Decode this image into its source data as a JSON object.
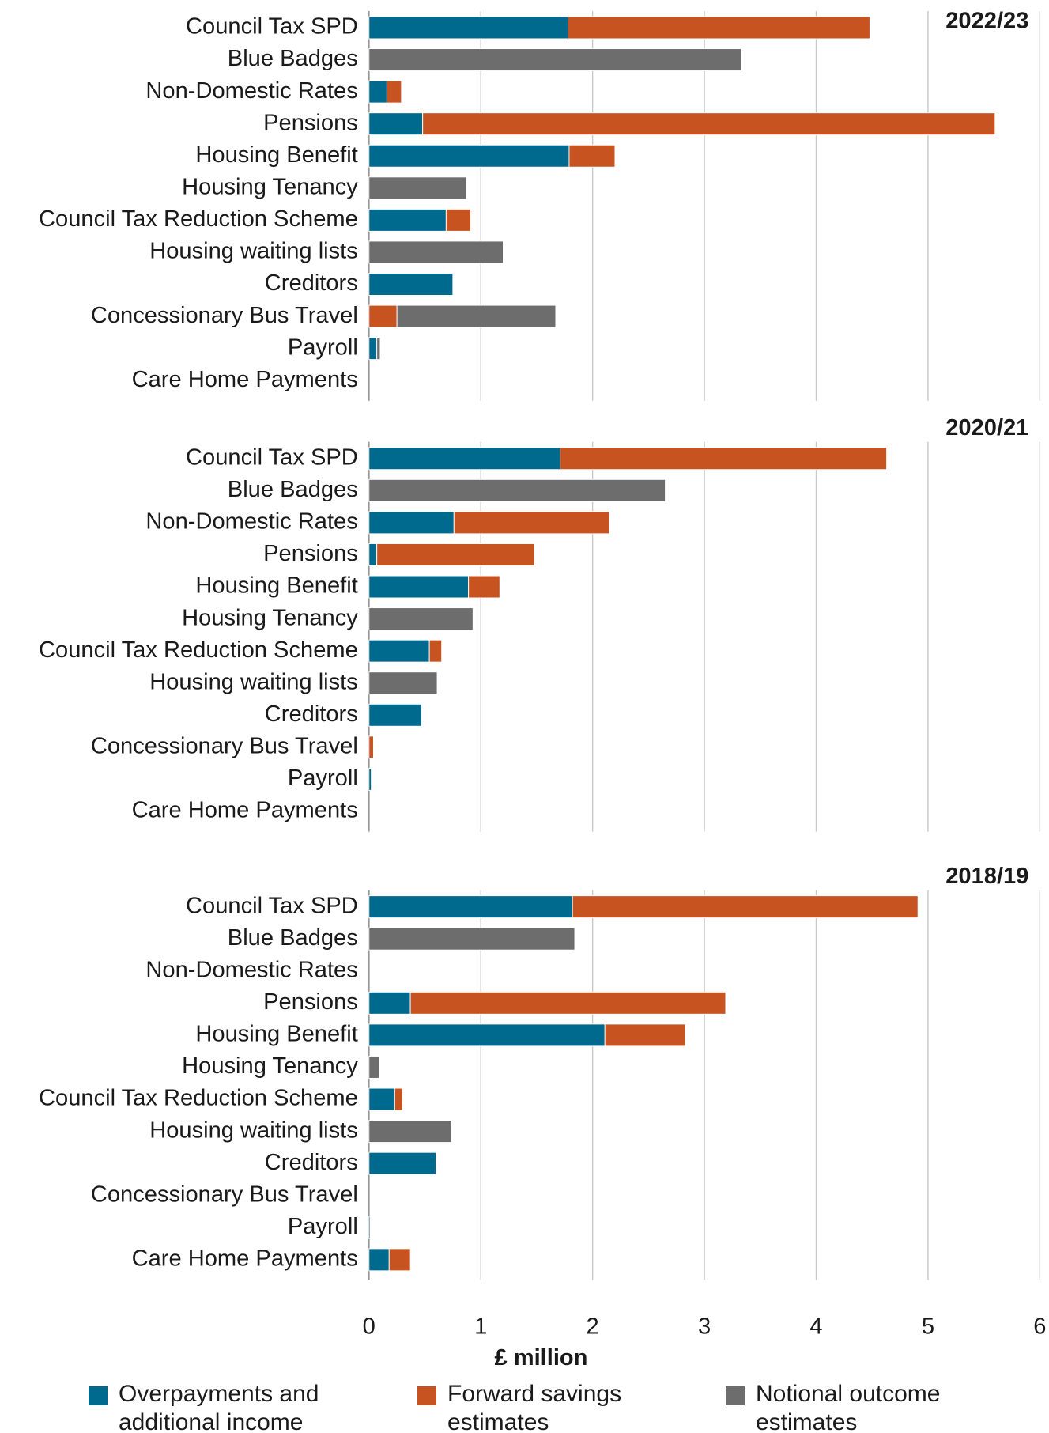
{
  "chart_data": {
    "type": "bar",
    "orientation": "horizontal",
    "stacked": true,
    "categories": [
      "Council Tax SPD",
      "Blue Badges",
      "Non-Domestic Rates",
      "Pensions",
      "Housing Benefit",
      "Housing Tenancy",
      "Council Tax Reduction Scheme",
      "Housing waiting lists",
      "Creditors",
      "Concessionary Bus Travel",
      "Payroll",
      "Care Home Payments"
    ],
    "legend": [
      {
        "name": "Overpayments and additional income",
        "color": "#006a8e"
      },
      {
        "name": "Forward savings estimates",
        "color": "#c65320"
      },
      {
        "name": "Notional outcome estimates",
        "color": "#6d6d6d"
      }
    ],
    "panels": [
      {
        "title": "2022/23",
        "series": [
          {
            "values": [
              1.78,
              0,
              0.16,
              0.48,
              1.79,
              0,
              0.69,
              0,
              0.75,
              0,
              0.07,
              0
            ]
          },
          {
            "values": [
              2.7,
              0,
              0.13,
              5.12,
              0.41,
              0,
              0.22,
              0,
              0,
              0.25,
              0,
              0
            ]
          },
          {
            "values": [
              0,
              3.33,
              0,
              0,
              0,
              0.87,
              0,
              1.2,
              0,
              1.42,
              0.03,
              0
            ]
          }
        ]
      },
      {
        "title": "2020/21",
        "series": [
          {
            "values": [
              1.71,
              0,
              0.76,
              0.07,
              0.89,
              0,
              0.54,
              0,
              0.47,
              0,
              0.02,
              0
            ]
          },
          {
            "values": [
              2.92,
              0,
              1.39,
              1.41,
              0.28,
              0,
              0.11,
              0,
              0,
              0.04,
              0,
              0
            ]
          },
          {
            "values": [
              0,
              2.65,
              0,
              0,
              0,
              0.93,
              0,
              0.61,
              0,
              0,
              0,
              0
            ]
          }
        ]
      },
      {
        "title": "2018/19",
        "series": [
          {
            "values": [
              1.82,
              0,
              0,
              0.37,
              2.11,
              0,
              0.23,
              0,
              0.6,
              0,
              0.01,
              0.18
            ]
          },
          {
            "values": [
              3.09,
              0,
              0,
              2.82,
              0.72,
              0,
              0.07,
              0,
              0,
              0,
              0,
              0.19
            ]
          },
          {
            "values": [
              0,
              1.84,
              0,
              0,
              0,
              0.09,
              0,
              0.74,
              0,
              0,
              0,
              0
            ]
          }
        ]
      }
    ],
    "xlim": [
      0,
      6
    ],
    "xticks": [
      0,
      1,
      2,
      3,
      4,
      5,
      6
    ],
    "xlabel": "£ million",
    "grid": true,
    "legend_position": "bottom"
  }
}
